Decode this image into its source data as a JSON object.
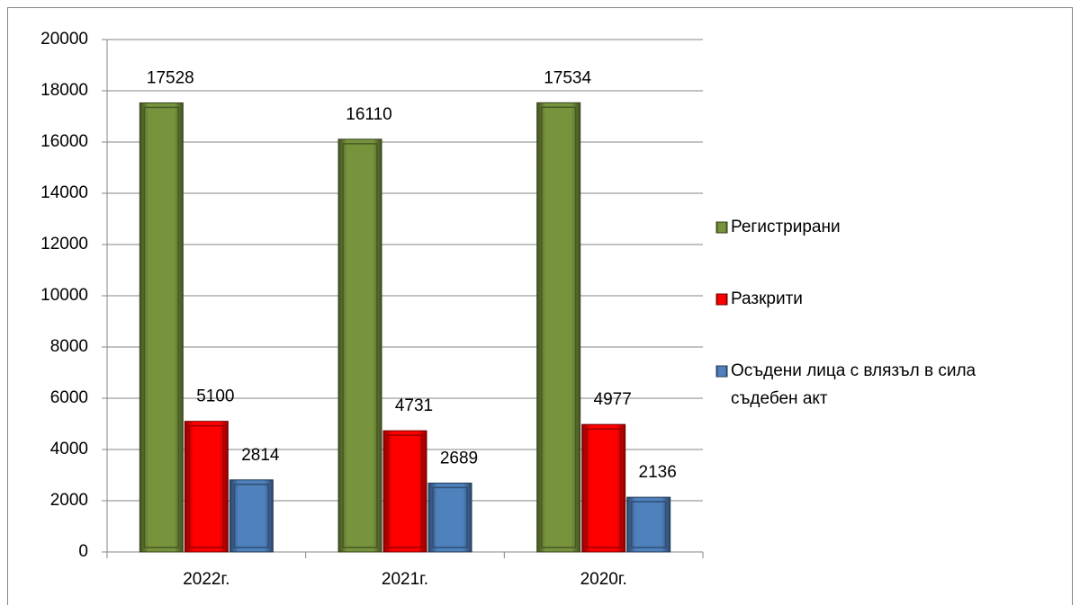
{
  "chart_data": {
    "type": "bar",
    "categories": [
      "2022г.",
      "2021г.",
      "2020г."
    ],
    "series": [
      {
        "name": "Регистрирани",
        "color": "#77933c",
        "values": [
          17528,
          16110,
          17534
        ]
      },
      {
        "name": "Разкрити",
        "color": "#ff0000",
        "values": [
          5100,
          4731,
          4977
        ]
      },
      {
        "name": "Осъдени лица с влязъл в сила съдебен акт",
        "color": "#4f81bd",
        "values": [
          2814,
          2689,
          2136
        ]
      }
    ],
    "ylim": [
      0,
      20000
    ],
    "yticks": [
      0,
      2000,
      4000,
      6000,
      8000,
      10000,
      12000,
      14000,
      16000,
      18000,
      20000
    ],
    "grid": true,
    "legend": "right"
  }
}
